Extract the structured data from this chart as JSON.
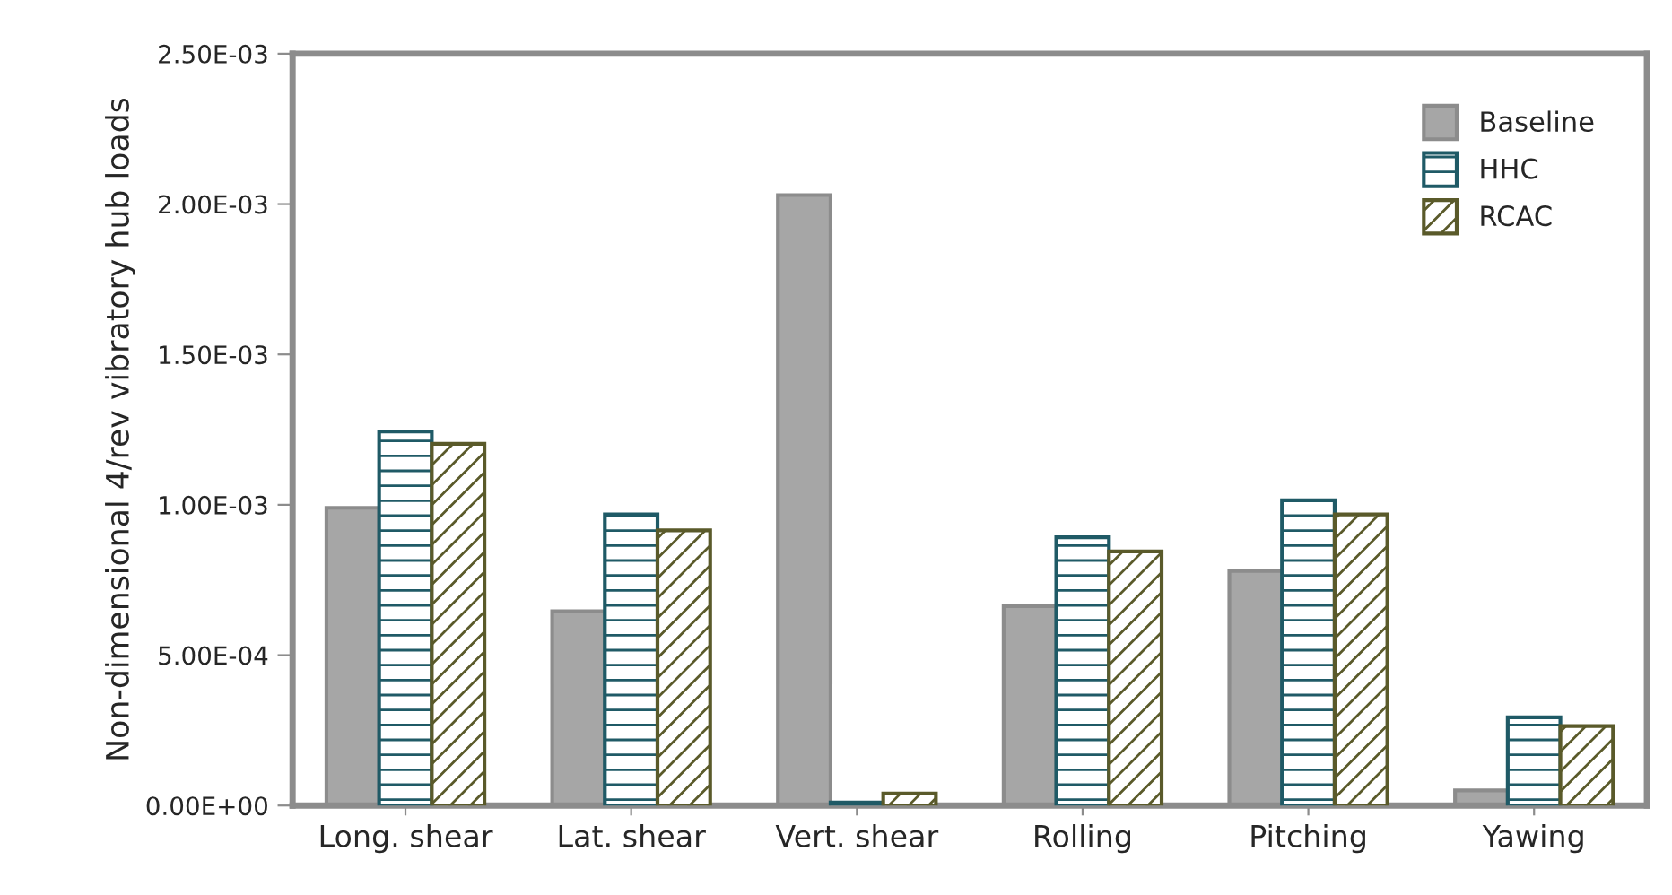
{
  "chart_data": {
    "type": "bar",
    "ylabel": "Non-dimensional 4/rev vibratory hub loads",
    "categories": [
      "Long. shear",
      "Lat. shear",
      "Vert. shear",
      "Rolling",
      "Pitching",
      "Yawing"
    ],
    "series": [
      {
        "name": "Baseline",
        "color": "#a6a6a6",
        "values": [
          0.00099,
          0.000646,
          0.00203,
          0.000663,
          0.00078,
          5e-05
        ]
      },
      {
        "name": "HHC",
        "color": "#1f5a66",
        "values": [
          0.001244,
          0.000968,
          1e-05,
          0.000892,
          0.001015,
          0.000293
        ]
      },
      {
        "name": "RCAC",
        "color": "#5a5a2a",
        "values": [
          0.001203,
          0.000915,
          4e-05,
          0.000845,
          0.000968,
          0.000264
        ]
      }
    ],
    "ylim": [
      0,
      0.0025
    ],
    "yticks": [
      {
        "value": 0,
        "label": "0.00E+00"
      },
      {
        "value": 0.0005,
        "label": "5.00E-04"
      },
      {
        "value": 0.001,
        "label": "1.00E-03"
      },
      {
        "value": 0.0015,
        "label": "1.50E-03"
      },
      {
        "value": 0.002,
        "label": "2.00E-03"
      },
      {
        "value": 0.0025,
        "label": "2.50E-03"
      }
    ],
    "grid": false,
    "legend": "top right"
  }
}
